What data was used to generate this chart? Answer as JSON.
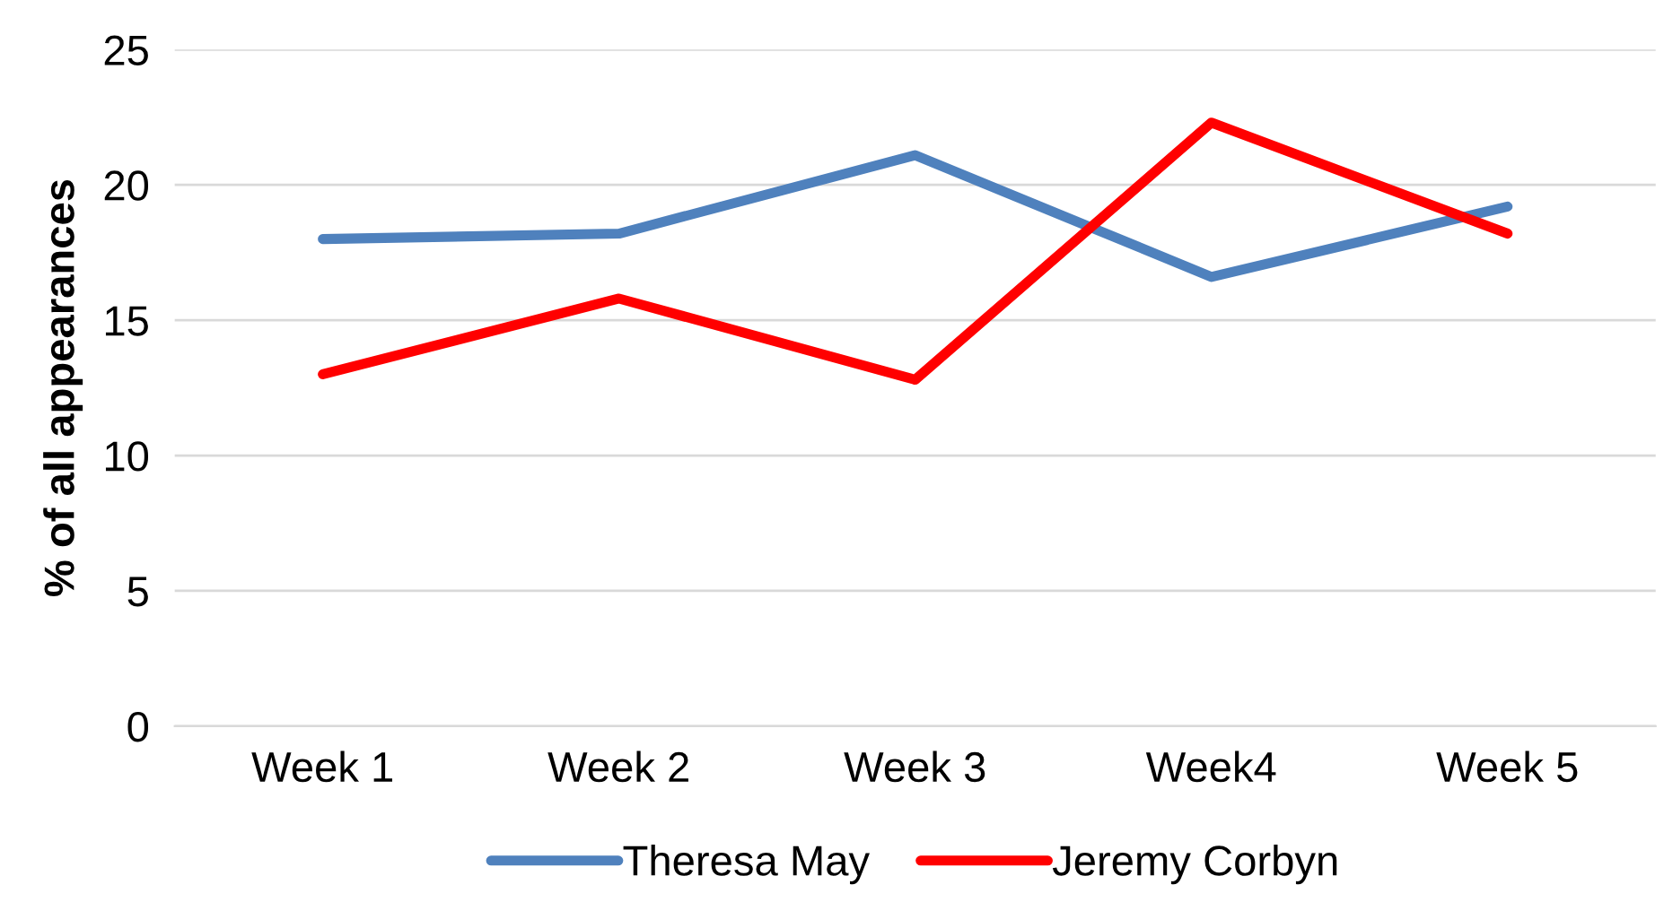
{
  "chart_data": {
    "type": "line",
    "ylabel": "% of all appearances",
    "categories": [
      "Week 1",
      "Week 2",
      "Week 3",
      "Week4",
      "Week 5"
    ],
    "series": [
      {
        "name": "Theresa May",
        "color": "#4f81bd",
        "values": [
          18.0,
          18.2,
          21.1,
          16.6,
          19.2
        ]
      },
      {
        "name": "Jeremy Corbyn",
        "color": "#ff0000",
        "values": [
          13.0,
          15.8,
          12.8,
          22.3,
          18.2
        ]
      }
    ],
    "ylim": [
      0,
      25
    ],
    "yticks": [
      0,
      5,
      10,
      15,
      20,
      25
    ],
    "grid": "y",
    "legend": "bottom",
    "marker": "none",
    "line_style": "solid"
  }
}
